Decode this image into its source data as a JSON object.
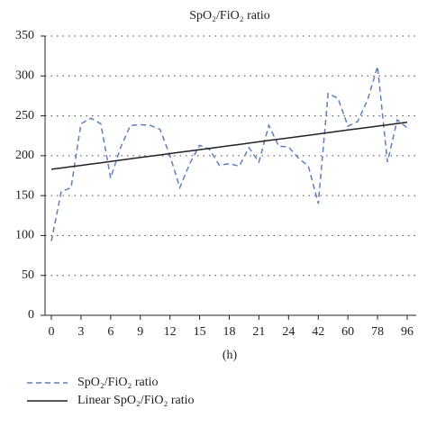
{
  "chart_data": {
    "type": "line",
    "title": "SpO₂/FiO₂ ratio",
    "x_label": "(h)",
    "categories": [
      "0",
      null,
      null,
      "3",
      null,
      null,
      "6",
      null,
      null,
      "9",
      null,
      null,
      "12",
      null,
      null,
      "15",
      null,
      null,
      "18",
      null,
      null,
      "21",
      null,
      null,
      "24",
      null,
      null,
      "42",
      null,
      null,
      "60",
      null,
      null,
      "78",
      null,
      null,
      "96"
    ],
    "series": [
      {
        "name": "SpO₂/FiO₂ ratio",
        "color": "#5b7fbf",
        "style": "dashed",
        "values": [
          93,
          155,
          160,
          240,
          247,
          240,
          172,
          210,
          238,
          239,
          238,
          233,
          200,
          160,
          190,
          213,
          208,
          188,
          190,
          187,
          210,
          192,
          238,
          212,
          211,
          197,
          187,
          140,
          278,
          272,
          237,
          243,
          270,
          312,
          192,
          245,
          235
        ]
      },
      {
        "name": "Linear SpO₂/FiO₂ ratio",
        "color": "#222222",
        "style": "solid",
        "values": [
          183.0,
          184.6,
          186.3,
          187.9,
          189.6,
          191.2,
          192.8,
          194.5,
          196.1,
          197.8,
          199.4,
          201.0,
          202.7,
          204.3,
          205.9,
          207.6,
          209.2,
          210.9,
          212.5,
          214.1,
          215.8,
          217.4,
          219.1,
          220.7,
          222.3,
          224.0,
          225.6,
          227.3,
          228.9,
          230.5,
          232.2,
          233.8,
          235.4,
          237.1,
          238.7,
          240.4,
          242.0
        ]
      }
    ],
    "ylim": [
      0,
      350
    ],
    "yticks": [
      0,
      50,
      100,
      150,
      200,
      250,
      300,
      350
    ],
    "grid": true,
    "legend": "bottom-left"
  }
}
